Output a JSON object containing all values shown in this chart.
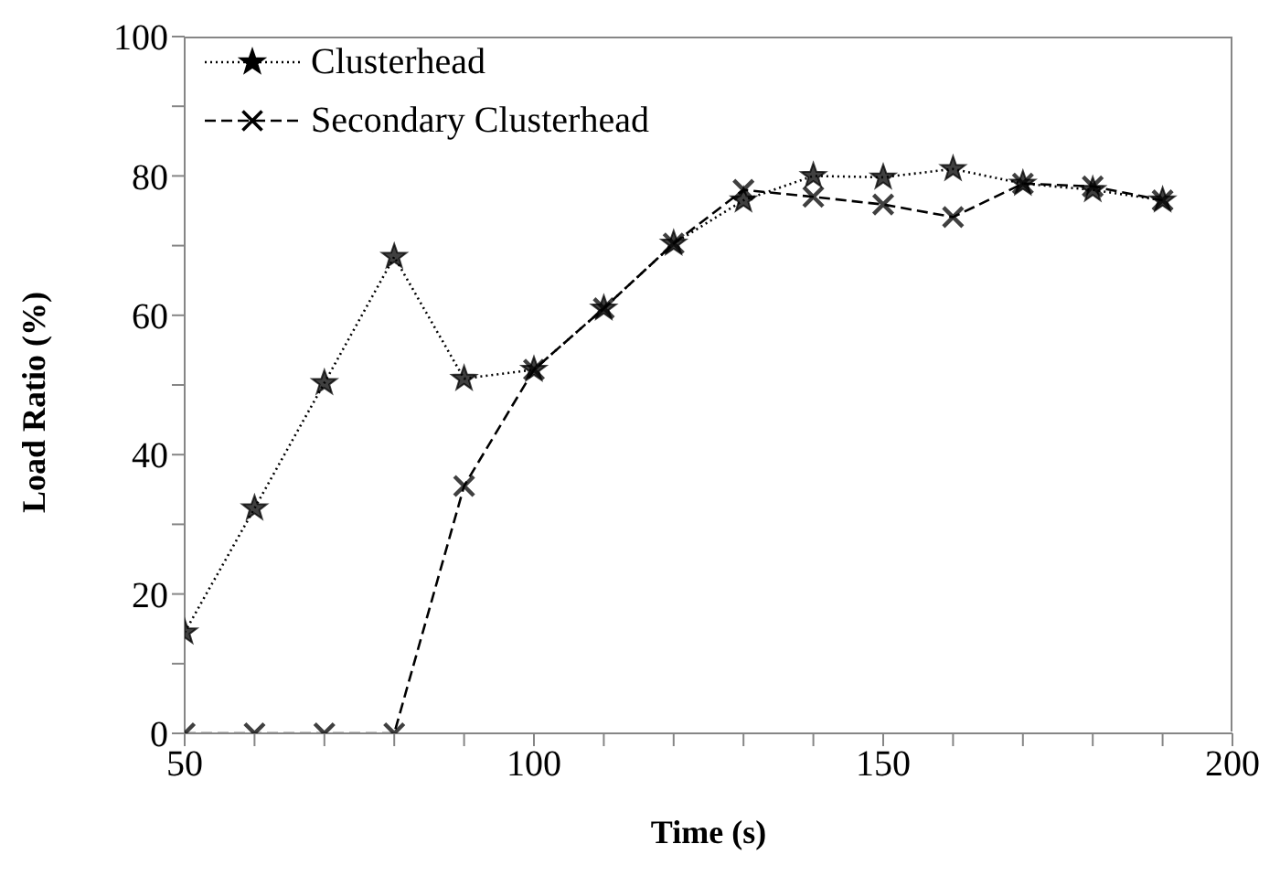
{
  "chart_data": {
    "type": "line",
    "xlabel": "Time (s)",
    "ylabel": "Load Ratio (%)",
    "x": [
      50,
      60,
      70,
      80,
      90,
      100,
      110,
      120,
      130,
      140,
      150,
      160,
      170,
      180,
      190
    ],
    "series": [
      {
        "name": "Clusterhead",
        "color": "#000000",
        "marker": "star",
        "line_style": "dotted",
        "values": [
          14.5,
          32.3,
          50.3,
          68.4,
          50.9,
          52.2,
          61,
          70.3,
          76.5,
          80,
          79.8,
          81,
          78.9,
          78,
          76.5
        ]
      },
      {
        "name": "Secondary Clusterhead",
        "color": "#000000",
        "marker": "cross",
        "line_style": "dashed",
        "values": [
          0,
          0,
          0,
          0,
          35.5,
          52.2,
          61,
          70.3,
          78,
          77,
          75.9,
          74.1,
          78.9,
          78.5,
          76.5
        ]
      }
    ],
    "xlim": [
      50,
      200
    ],
    "xticks": [
      50,
      {
        "value": 60,
        "label": null
      },
      {
        "value": 70,
        "label": null
      },
      {
        "value": 80,
        "label": null
      },
      {
        "value": 90,
        "label": null
      },
      100,
      {
        "value": 110,
        "label": null
      },
      {
        "value": 120,
        "label": null
      },
      {
        "value": 130,
        "label": null
      },
      {
        "value": 140,
        "label": null
      },
      150,
      {
        "value": 160,
        "label": null
      },
      {
        "value": 170,
        "label": null
      },
      {
        "value": 180,
        "label": null
      },
      {
        "value": 190,
        "label": null
      },
      200
    ],
    "ylim": [
      0,
      100
    ],
    "yticks": [
      0,
      {
        "value": 10,
        "label": null
      },
      20,
      {
        "value": 30,
        "label": null
      },
      40,
      {
        "value": 50,
        "label": null
      },
      60,
      {
        "value": 70,
        "label": null
      },
      80,
      {
        "value": 90,
        "label": null
      },
      100
    ],
    "grid": false,
    "legend": "top left"
  }
}
